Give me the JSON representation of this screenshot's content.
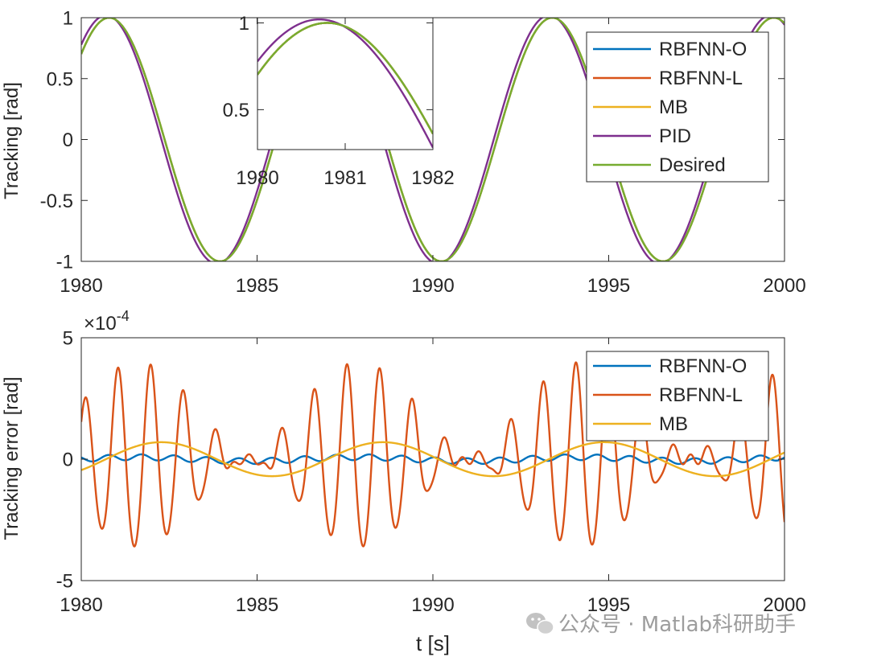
{
  "chart_data": [
    {
      "type": "line",
      "title": "",
      "xlabel": "",
      "ylabel": "Tracking [rad]",
      "xlim": [
        1980,
        2000
      ],
      "ylim": [
        -1,
        1
      ],
      "xticks": [
        1980,
        1985,
        1990,
        1995,
        2000
      ],
      "yticks": [
        -1,
        -0.5,
        0,
        0.5,
        1
      ],
      "ytick_labels": [
        "-1",
        "-0.5",
        "0",
        "0.5",
        "1"
      ],
      "legend": {
        "position": "top-right",
        "entries": [
          "RBFNN-O",
          "RBFNN-L",
          "MB",
          "PID",
          "Desired"
        ]
      },
      "series": [
        {
          "name": "RBFNN-O",
          "color": "#0072BD",
          "model": "A*sin(2*pi*(t - t0)/P)",
          "A": 1,
          "P": 6.3,
          "t0": 1979.22
        },
        {
          "name": "RBFNN-L",
          "color": "#D95319",
          "model": "A*sin(2*pi*(t - t0)/P)",
          "A": 1,
          "P": 6.3,
          "t0": 1979.22
        },
        {
          "name": "MB",
          "color": "#EDB120",
          "model": "A*sin(2*pi*(t - t0)/P)",
          "A": 1,
          "P": 6.3,
          "t0": 1979.22
        },
        {
          "name": "PID",
          "color": "#7E2F8E",
          "model": "A*sin(2*pi*(t - t0)/P)",
          "A": 1.02,
          "P": 6.3,
          "t0": 1979.13
        },
        {
          "name": "Desired",
          "color": "#77AC30",
          "model": "A*sin(2*pi*(t - t0)/P)",
          "A": 1,
          "P": 6.3,
          "t0": 1979.22
        }
      ],
      "inset": {
        "xlim": [
          1980,
          1982
        ],
        "ylim": [
          0.27,
          1.03
        ],
        "xticks": [
          1980,
          1981,
          1982
        ],
        "yticks": [
          0.5,
          1
        ],
        "ytick_labels": [
          "0.5",
          "1"
        ]
      }
    },
    {
      "type": "line",
      "title": "",
      "xlabel": "t [s]",
      "ylabel": "Tracking error  [rad]",
      "xlim": [
        1980,
        2000
      ],
      "ylim": [
        -5,
        5
      ],
      "y_exponent_label": "×10",
      "y_exponent": "-4",
      "xticks": [
        1980,
        1985,
        1990,
        1995,
        2000
      ],
      "yticks": [
        -5,
        0,
        5
      ],
      "ytick_labels": [
        "-5",
        "0",
        "5"
      ],
      "legend": {
        "position": "top-right",
        "entries": [
          "RBFNN-O",
          "RBFNN-L",
          "MB"
        ]
      },
      "series": [
        {
          "name": "RBFNN-O",
          "color": "#0072BD",
          "model": "0.12*sin(2*pi*1.08*t) + 0.08*sin(2*pi*(t-1980)/6.3)",
          "amplitude_e4": 0.2
        },
        {
          "name": "RBFNN-L",
          "color": "#D95319",
          "model": "beating oscillation, period ~0.93 s, envelope period ~6.3 s",
          "peak_e4": 4.0,
          "trough_e4": -3.6,
          "peak_times": [
            1981.6,
            1987.9,
            1994.2
          ]
        },
        {
          "name": "MB",
          "color": "#EDB120",
          "model": "0.7*sin(2*pi*(t - 1980.7)/6.3)",
          "amplitude_e4": 0.7
        }
      ]
    }
  ],
  "watermark": {
    "icon": "wechat-icon",
    "text": "公众号 · Matlab科研助手"
  }
}
